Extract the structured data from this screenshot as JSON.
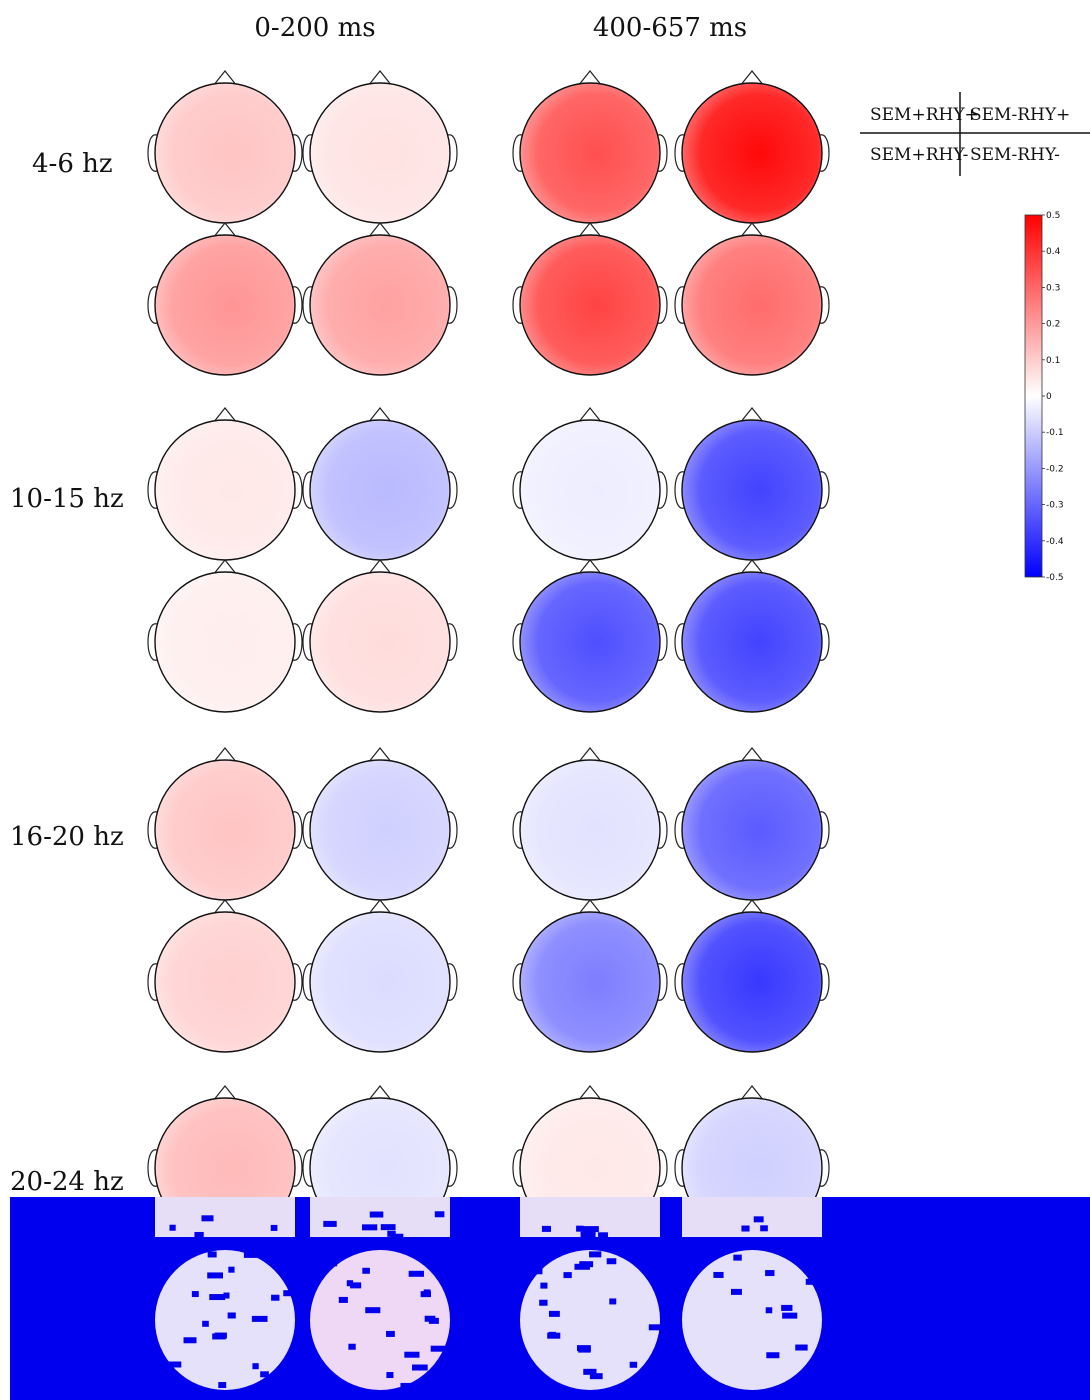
{
  "columns": [
    "0-200 ms",
    "400-657 ms"
  ],
  "bands": [
    "4-6 hz",
    "10-15 hz",
    "16-20 hz",
    "20-24 hz"
  ],
  "legend": {
    "cells": [
      [
        "SEM+RHY+",
        "SEM-RHY+"
      ],
      [
        "SEM+RHY-",
        "SEM-RHY-"
      ]
    ]
  },
  "colorbar": {
    "ticks": [
      "0.5",
      "0.4",
      "0.3",
      "0.2",
      "0.1",
      "0",
      "-0.1",
      "-0.2",
      "-0.3",
      "-0.4",
      "-0.5"
    ],
    "max_color": "#ff0000",
    "mid_color": "#ffffff",
    "min_color": "#0000ff"
  },
  "maps_note_shades": {
    "4-6 hz": [
      [
        0.1,
        0.05,
        0.3,
        0.42
      ],
      [
        0.18,
        0.16,
        0.32,
        0.25
      ]
    ],
    "10-15 hz": [
      [
        0.04,
        -0.12,
        -0.03,
        -0.32
      ],
      [
        0.03,
        0.06,
        -0.3,
        -0.32
      ]
    ],
    "16-20 hz": [
      [
        0.1,
        -0.08,
        -0.05,
        -0.28
      ],
      [
        0.08,
        -0.06,
        -0.22,
        -0.34
      ]
    ],
    "20-24 hz": [
      [
        0.12,
        -0.05,
        0.04,
        -0.08
      ],
      [
        0.05,
        -0.05,
        -0.05,
        -0.05
      ]
    ]
  },
  "overlay_color": "#0000ee"
}
